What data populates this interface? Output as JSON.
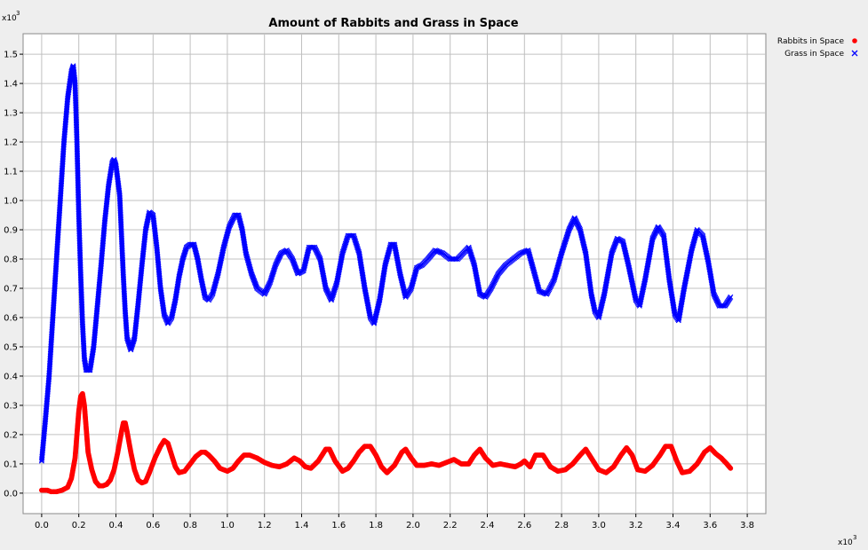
{
  "chart_data": {
    "type": "scatter",
    "title": "Amount of Rabbits and Grass in Space",
    "xlabel": "",
    "ylabel": "",
    "x_scale_label": "x10",
    "x_scale_exp": "3",
    "y_scale_label": "x10",
    "y_scale_exp": "3",
    "xlim": [
      -0.1,
      3.9
    ],
    "ylim": [
      -0.07,
      1.57
    ],
    "x_ticks": [
      "0.0",
      "0.2",
      "0.4",
      "0.6",
      "0.8",
      "1.0",
      "1.2",
      "1.4",
      "1.6",
      "1.8",
      "2.0",
      "2.2",
      "2.4",
      "2.6",
      "2.8",
      "3.0",
      "3.2",
      "3.4",
      "3.6",
      "3.8"
    ],
    "y_ticks": [
      "0.0",
      "0.1",
      "0.2",
      "0.3",
      "0.4",
      "0.5",
      "0.6",
      "0.7",
      "0.8",
      "0.9",
      "1.0",
      "1.1",
      "1.2",
      "1.3",
      "1.4",
      "1.5"
    ],
    "grid": true,
    "legend_position": "top-right",
    "series": [
      {
        "name": "Rabbits in Space",
        "marker": "dot",
        "color": "#ff0000",
        "points": [
          [
            0.0,
            0.01
          ],
          [
            0.03,
            0.01
          ],
          [
            0.05,
            0.005
          ],
          [
            0.08,
            0.005
          ],
          [
            0.11,
            0.01
          ],
          [
            0.14,
            0.02
          ],
          [
            0.16,
            0.05
          ],
          [
            0.18,
            0.12
          ],
          [
            0.19,
            0.2
          ],
          [
            0.2,
            0.28
          ],
          [
            0.21,
            0.33
          ],
          [
            0.22,
            0.34
          ],
          [
            0.23,
            0.3
          ],
          [
            0.24,
            0.22
          ],
          [
            0.25,
            0.14
          ],
          [
            0.27,
            0.08
          ],
          [
            0.29,
            0.04
          ],
          [
            0.31,
            0.025
          ],
          [
            0.33,
            0.025
          ],
          [
            0.35,
            0.03
          ],
          [
            0.37,
            0.045
          ],
          [
            0.39,
            0.08
          ],
          [
            0.41,
            0.14
          ],
          [
            0.43,
            0.21
          ],
          [
            0.44,
            0.24
          ],
          [
            0.45,
            0.24
          ],
          [
            0.46,
            0.21
          ],
          [
            0.48,
            0.14
          ],
          [
            0.5,
            0.08
          ],
          [
            0.52,
            0.045
          ],
          [
            0.54,
            0.035
          ],
          [
            0.56,
            0.04
          ],
          [
            0.58,
            0.07
          ],
          [
            0.61,
            0.12
          ],
          [
            0.64,
            0.16
          ],
          [
            0.66,
            0.18
          ],
          [
            0.68,
            0.17
          ],
          [
            0.7,
            0.13
          ],
          [
            0.72,
            0.09
          ],
          [
            0.74,
            0.07
          ],
          [
            0.77,
            0.075
          ],
          [
            0.8,
            0.1
          ],
          [
            0.83,
            0.125
          ],
          [
            0.86,
            0.14
          ],
          [
            0.88,
            0.14
          ],
          [
            0.9,
            0.13
          ],
          [
            0.93,
            0.11
          ],
          [
            0.96,
            0.085
          ],
          [
            1.0,
            0.075
          ],
          [
            1.03,
            0.085
          ],
          [
            1.06,
            0.11
          ],
          [
            1.09,
            0.13
          ],
          [
            1.12,
            0.13
          ],
          [
            1.16,
            0.12
          ],
          [
            1.2,
            0.105
          ],
          [
            1.24,
            0.095
          ],
          [
            1.28,
            0.09
          ],
          [
            1.32,
            0.1
          ],
          [
            1.36,
            0.12
          ],
          [
            1.39,
            0.11
          ],
          [
            1.42,
            0.09
          ],
          [
            1.45,
            0.085
          ],
          [
            1.49,
            0.11
          ],
          [
            1.53,
            0.15
          ],
          [
            1.55,
            0.15
          ],
          [
            1.58,
            0.11
          ],
          [
            1.62,
            0.075
          ],
          [
            1.65,
            0.085
          ],
          [
            1.68,
            0.11
          ],
          [
            1.71,
            0.14
          ],
          [
            1.74,
            0.16
          ],
          [
            1.77,
            0.16
          ],
          [
            1.8,
            0.13
          ],
          [
            1.83,
            0.09
          ],
          [
            1.86,
            0.07
          ],
          [
            1.9,
            0.095
          ],
          [
            1.94,
            0.14
          ],
          [
            1.96,
            0.15
          ],
          [
            1.99,
            0.12
          ],
          [
            2.02,
            0.095
          ],
          [
            2.06,
            0.095
          ],
          [
            2.1,
            0.1
          ],
          [
            2.14,
            0.095
          ],
          [
            2.18,
            0.105
          ],
          [
            2.22,
            0.115
          ],
          [
            2.26,
            0.1
          ],
          [
            2.3,
            0.1
          ],
          [
            2.33,
            0.13
          ],
          [
            2.36,
            0.15
          ],
          [
            2.39,
            0.12
          ],
          [
            2.43,
            0.095
          ],
          [
            2.47,
            0.1
          ],
          [
            2.51,
            0.095
          ],
          [
            2.55,
            0.09
          ],
          [
            2.58,
            0.1
          ],
          [
            2.6,
            0.11
          ],
          [
            2.63,
            0.09
          ],
          [
            2.66,
            0.13
          ],
          [
            2.7,
            0.13
          ],
          [
            2.74,
            0.09
          ],
          [
            2.78,
            0.075
          ],
          [
            2.82,
            0.08
          ],
          [
            2.86,
            0.1
          ],
          [
            2.9,
            0.13
          ],
          [
            2.93,
            0.15
          ],
          [
            2.96,
            0.12
          ],
          [
            3.0,
            0.08
          ],
          [
            3.04,
            0.07
          ],
          [
            3.08,
            0.09
          ],
          [
            3.12,
            0.13
          ],
          [
            3.15,
            0.155
          ],
          [
            3.18,
            0.13
          ],
          [
            3.21,
            0.08
          ],
          [
            3.25,
            0.075
          ],
          [
            3.29,
            0.095
          ],
          [
            3.33,
            0.13
          ],
          [
            3.36,
            0.16
          ],
          [
            3.39,
            0.16
          ],
          [
            3.42,
            0.11
          ],
          [
            3.45,
            0.07
          ],
          [
            3.49,
            0.075
          ],
          [
            3.53,
            0.1
          ],
          [
            3.57,
            0.14
          ],
          [
            3.6,
            0.155
          ],
          [
            3.63,
            0.135
          ],
          [
            3.66,
            0.12
          ],
          [
            3.69,
            0.1
          ],
          [
            3.71,
            0.085
          ]
        ]
      },
      {
        "name": "Grass in Space",
        "marker": "x",
        "color": "#0000ff",
        "points": [
          [
            0.0,
            0.11
          ],
          [
            0.02,
            0.25
          ],
          [
            0.04,
            0.4
          ],
          [
            0.06,
            0.6
          ],
          [
            0.08,
            0.8
          ],
          [
            0.1,
            1.0
          ],
          [
            0.12,
            1.2
          ],
          [
            0.14,
            1.35
          ],
          [
            0.16,
            1.44
          ],
          [
            0.17,
            1.46
          ],
          [
            0.18,
            1.4
          ],
          [
            0.19,
            1.2
          ],
          [
            0.2,
            0.95
          ],
          [
            0.21,
            0.75
          ],
          [
            0.22,
            0.58
          ],
          [
            0.23,
            0.46
          ],
          [
            0.24,
            0.42
          ],
          [
            0.26,
            0.42
          ],
          [
            0.28,
            0.5
          ],
          [
            0.3,
            0.64
          ],
          [
            0.32,
            0.78
          ],
          [
            0.34,
            0.93
          ],
          [
            0.36,
            1.05
          ],
          [
            0.38,
            1.13
          ],
          [
            0.39,
            1.14
          ],
          [
            0.4,
            1.12
          ],
          [
            0.42,
            1.02
          ],
          [
            0.43,
            0.88
          ],
          [
            0.44,
            0.74
          ],
          [
            0.45,
            0.62
          ],
          [
            0.46,
            0.53
          ],
          [
            0.48,
            0.49
          ],
          [
            0.5,
            0.53
          ],
          [
            0.52,
            0.65
          ],
          [
            0.54,
            0.78
          ],
          [
            0.56,
            0.9
          ],
          [
            0.58,
            0.96
          ],
          [
            0.6,
            0.95
          ],
          [
            0.62,
            0.84
          ],
          [
            0.64,
            0.7
          ],
          [
            0.66,
            0.61
          ],
          [
            0.68,
            0.58
          ],
          [
            0.7,
            0.6
          ],
          [
            0.72,
            0.66
          ],
          [
            0.74,
            0.74
          ],
          [
            0.76,
            0.8
          ],
          [
            0.78,
            0.84
          ],
          [
            0.8,
            0.85
          ],
          [
            0.82,
            0.85
          ],
          [
            0.84,
            0.8
          ],
          [
            0.86,
            0.73
          ],
          [
            0.88,
            0.67
          ],
          [
            0.9,
            0.66
          ],
          [
            0.92,
            0.68
          ],
          [
            0.95,
            0.75
          ],
          [
            0.98,
            0.84
          ],
          [
            1.01,
            0.91
          ],
          [
            1.04,
            0.95
          ],
          [
            1.06,
            0.95
          ],
          [
            1.08,
            0.9
          ],
          [
            1.1,
            0.82
          ],
          [
            1.13,
            0.75
          ],
          [
            1.16,
            0.7
          ],
          [
            1.2,
            0.68
          ],
          [
            1.23,
            0.72
          ],
          [
            1.26,
            0.78
          ],
          [
            1.29,
            0.82
          ],
          [
            1.32,
            0.83
          ],
          [
            1.35,
            0.8
          ],
          [
            1.38,
            0.75
          ],
          [
            1.41,
            0.76
          ],
          [
            1.44,
            0.84
          ],
          [
            1.47,
            0.84
          ],
          [
            1.5,
            0.8
          ],
          [
            1.53,
            0.7
          ],
          [
            1.56,
            0.66
          ],
          [
            1.59,
            0.72
          ],
          [
            1.62,
            0.82
          ],
          [
            1.65,
            0.88
          ],
          [
            1.68,
            0.88
          ],
          [
            1.71,
            0.82
          ],
          [
            1.74,
            0.7
          ],
          [
            1.77,
            0.6
          ],
          [
            1.79,
            0.58
          ],
          [
            1.82,
            0.66
          ],
          [
            1.85,
            0.78
          ],
          [
            1.88,
            0.85
          ],
          [
            1.9,
            0.85
          ],
          [
            1.93,
            0.75
          ],
          [
            1.96,
            0.67
          ],
          [
            1.99,
            0.7
          ],
          [
            2.02,
            0.77
          ],
          [
            2.05,
            0.78
          ],
          [
            2.08,
            0.8
          ],
          [
            2.12,
            0.83
          ],
          [
            2.16,
            0.82
          ],
          [
            2.2,
            0.8
          ],
          [
            2.24,
            0.8
          ],
          [
            2.27,
            0.82
          ],
          [
            2.3,
            0.84
          ],
          [
            2.33,
            0.78
          ],
          [
            2.36,
            0.68
          ],
          [
            2.39,
            0.67
          ],
          [
            2.42,
            0.7
          ],
          [
            2.46,
            0.75
          ],
          [
            2.5,
            0.78
          ],
          [
            2.54,
            0.8
          ],
          [
            2.58,
            0.82
          ],
          [
            2.62,
            0.83
          ],
          [
            2.65,
            0.76
          ],
          [
            2.68,
            0.69
          ],
          [
            2.72,
            0.68
          ],
          [
            2.76,
            0.73
          ],
          [
            2.8,
            0.82
          ],
          [
            2.84,
            0.9
          ],
          [
            2.87,
            0.94
          ],
          [
            2.9,
            0.9
          ],
          [
            2.93,
            0.82
          ],
          [
            2.96,
            0.68
          ],
          [
            2.98,
            0.62
          ],
          [
            3.0,
            0.6
          ],
          [
            3.03,
            0.68
          ],
          [
            3.07,
            0.82
          ],
          [
            3.1,
            0.87
          ],
          [
            3.13,
            0.86
          ],
          [
            3.16,
            0.78
          ],
          [
            3.2,
            0.66
          ],
          [
            3.22,
            0.64
          ],
          [
            3.25,
            0.73
          ],
          [
            3.29,
            0.87
          ],
          [
            3.32,
            0.91
          ],
          [
            3.35,
            0.88
          ],
          [
            3.38,
            0.73
          ],
          [
            3.41,
            0.61
          ],
          [
            3.43,
            0.59
          ],
          [
            3.46,
            0.7
          ],
          [
            3.5,
            0.83
          ],
          [
            3.53,
            0.9
          ],
          [
            3.56,
            0.88
          ],
          [
            3.59,
            0.79
          ],
          [
            3.62,
            0.68
          ],
          [
            3.65,
            0.64
          ],
          [
            3.68,
            0.64
          ],
          [
            3.71,
            0.67
          ]
        ]
      }
    ]
  }
}
